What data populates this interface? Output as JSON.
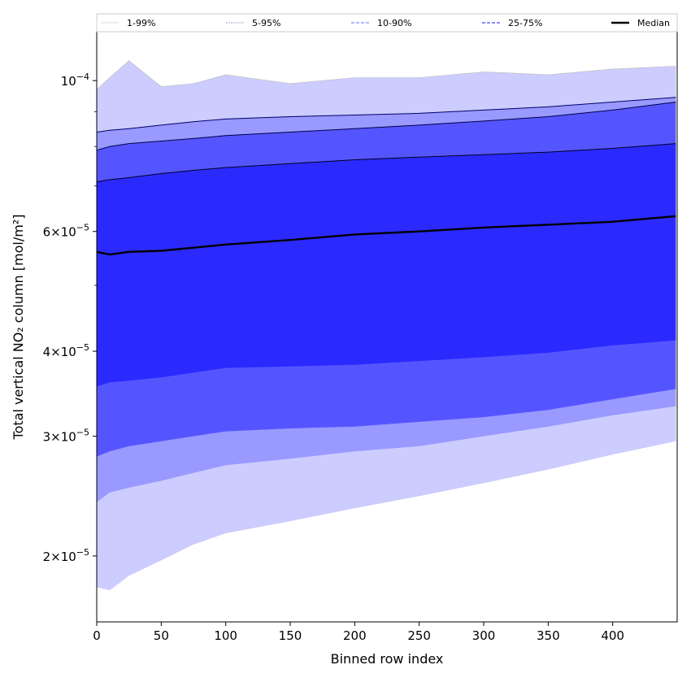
{
  "chart_data": {
    "type": "area",
    "xlabel": "Binned row index",
    "ylabel": "Total vertical NO₂ column [mol/m²]",
    "xlim": [
      0,
      450
    ],
    "ylim": [
      1.6e-05,
      0.000118
    ],
    "y_scale": "log",
    "x_ticks": [
      0,
      50,
      100,
      150,
      200,
      250,
      300,
      350,
      400
    ],
    "y_ticks": [
      {
        "value": 2e-05,
        "mantissa": "2",
        "exp": "−5"
      },
      {
        "value": 3e-05,
        "mantissa": "3",
        "exp": "−5"
      },
      {
        "value": 4e-05,
        "mantissa": "4",
        "exp": "−5"
      },
      {
        "value": 6e-05,
        "mantissa": "6",
        "exp": "−5"
      },
      {
        "value": 0.0001,
        "mantissa": "",
        "exp": "−4"
      }
    ],
    "x": [
      0,
      10,
      25,
      50,
      75,
      100,
      150,
      200,
      250,
      300,
      350,
      400,
      449
    ],
    "bands": [
      {
        "name": "1-99%",
        "color": "#ccccff",
        "edge_color": "#bbbbbb",
        "lower": [
          1.8e-05,
          1.78e-05,
          1.87e-05,
          1.97e-05,
          2.08e-05,
          2.16e-05,
          2.25e-05,
          2.35e-05,
          2.45e-05,
          2.56e-05,
          2.68e-05,
          2.82e-05,
          2.95e-05
        ],
        "upper": [
          9.7e-05,
          0.000101,
          0.000107,
          9.8e-05,
          9.9e-05,
          0.000102,
          9.9e-05,
          0.000101,
          0.000101,
          0.000103,
          0.000102,
          0.000104,
          0.000105
        ]
      },
      {
        "name": "5-95%",
        "color": "#9999ff",
        "edge_color": "#000066",
        "lower": [
          2.4e-05,
          2.48e-05,
          2.52e-05,
          2.58e-05,
          2.65e-05,
          2.72e-05,
          2.78e-05,
          2.85e-05,
          2.9e-05,
          3e-05,
          3.1e-05,
          3.22e-05,
          3.32e-05
        ],
        "upper": [
          8.4e-05,
          8.45e-05,
          8.5e-05,
          8.6e-05,
          8.7e-05,
          8.78e-05,
          8.85e-05,
          8.9e-05,
          8.95e-05,
          9.05e-05,
          9.15e-05,
          9.3e-05,
          9.45e-05
        ]
      },
      {
        "name": "10-90%",
        "color": "#5555ff",
        "edge_color": "#000044",
        "lower": [
          2.8e-05,
          2.85e-05,
          2.9e-05,
          2.95e-05,
          3e-05,
          3.05e-05,
          3.08e-05,
          3.1e-05,
          3.15e-05,
          3.2e-05,
          3.28e-05,
          3.4e-05,
          3.52e-05
        ],
        "upper": [
          7.9e-05,
          8e-05,
          8.08e-05,
          8.15e-05,
          8.22e-05,
          8.3e-05,
          8.4e-05,
          8.5e-05,
          8.6e-05,
          8.72e-05,
          8.85e-05,
          9.05e-05,
          9.3e-05
        ]
      },
      {
        "name": "25-75%",
        "color": "#2a2aff",
        "edge_color": "#000022",
        "lower": [
          3.55e-05,
          3.6e-05,
          3.62e-05,
          3.66e-05,
          3.72e-05,
          3.78e-05,
          3.8e-05,
          3.82e-05,
          3.87e-05,
          3.92e-05,
          3.98e-05,
          4.08e-05,
          4.15e-05
        ],
        "upper": [
          7.1e-05,
          7.15e-05,
          7.2e-05,
          7.3e-05,
          7.38e-05,
          7.45e-05,
          7.55e-05,
          7.65e-05,
          7.72e-05,
          7.78e-05,
          7.85e-05,
          7.95e-05,
          8.08e-05
        ]
      }
    ],
    "series": [
      {
        "name": "Median",
        "color": "#000000",
        "values": [
          5.6e-05,
          5.55e-05,
          5.6e-05,
          5.62e-05,
          5.68e-05,
          5.74e-05,
          5.83e-05,
          5.94e-05,
          6e-05,
          6.08e-05,
          6.14e-05,
          6.2e-05,
          6.32e-05
        ]
      }
    ],
    "legend": {
      "placement": "top",
      "entries": [
        {
          "label": "1-99%",
          "color": "#dddddd",
          "style": "solid-thin"
        },
        {
          "label": "5-95%",
          "color": "#8888cc",
          "style": "dotted"
        },
        {
          "label": "10-90%",
          "color": "#8888ff",
          "style": "dashed"
        },
        {
          "label": "25-75%",
          "color": "#4444ff",
          "style": "dashed"
        },
        {
          "label": "Median",
          "color": "#000000",
          "style": "solid-thick"
        }
      ]
    },
    "grid": false
  }
}
